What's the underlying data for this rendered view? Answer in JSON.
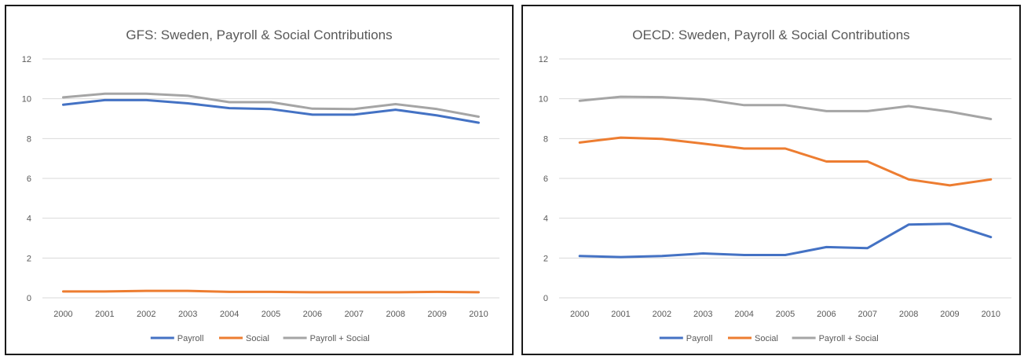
{
  "chart_data": [
    {
      "type": "line",
      "title": "GFS: Sweden, Payroll & Social Contributions",
      "xlabel": "",
      "ylabel": "",
      "categories": [
        "2000",
        "2001",
        "2002",
        "2003",
        "2004",
        "2005",
        "2006",
        "2007",
        "2008",
        "2009",
        "2010"
      ],
      "ylim": [
        0,
        12
      ],
      "yticks": [
        0,
        2,
        4,
        6,
        8,
        10,
        12
      ],
      "grid": true,
      "legend_position": "bottom",
      "series": [
        {
          "name": "Payroll",
          "color": "#4472c4",
          "values": [
            9.7,
            9.93,
            9.93,
            9.77,
            9.53,
            9.48,
            9.2,
            9.2,
            9.45,
            9.16,
            8.8
          ]
        },
        {
          "name": "Social",
          "color": "#ed7d31",
          "values": [
            0.32,
            0.32,
            0.35,
            0.35,
            0.3,
            0.3,
            0.28,
            0.28,
            0.28,
            0.3,
            0.28
          ]
        },
        {
          "name": "Payroll + Social",
          "color": "#a5a5a5",
          "values": [
            10.07,
            10.25,
            10.25,
            10.15,
            9.83,
            9.83,
            9.5,
            9.48,
            9.73,
            9.48,
            9.1
          ]
        }
      ]
    },
    {
      "type": "line",
      "title": "OECD: Sweden, Payroll & Social Contributions",
      "xlabel": "",
      "ylabel": "",
      "categories": [
        "2000",
        "2001",
        "2002",
        "2003",
        "2004",
        "2005",
        "2006",
        "2007",
        "2008",
        "2009",
        "2010"
      ],
      "ylim": [
        0,
        12
      ],
      "yticks": [
        0,
        2,
        4,
        6,
        8,
        10,
        12
      ],
      "grid": true,
      "legend_position": "bottom",
      "series": [
        {
          "name": "Payroll",
          "color": "#4472c4",
          "values": [
            2.1,
            2.05,
            2.1,
            2.23,
            2.15,
            2.15,
            2.55,
            2.5,
            3.68,
            3.72,
            3.05
          ]
        },
        {
          "name": "Social",
          "color": "#ed7d31",
          "values": [
            7.8,
            8.05,
            7.98,
            7.75,
            7.5,
            7.5,
            6.85,
            6.85,
            5.95,
            5.65,
            5.95
          ]
        },
        {
          "name": "Payroll + Social",
          "color": "#a5a5a5",
          "values": [
            9.9,
            10.1,
            10.08,
            9.97,
            9.68,
            9.68,
            9.38,
            9.38,
            9.63,
            9.35,
            8.98
          ]
        }
      ]
    }
  ]
}
